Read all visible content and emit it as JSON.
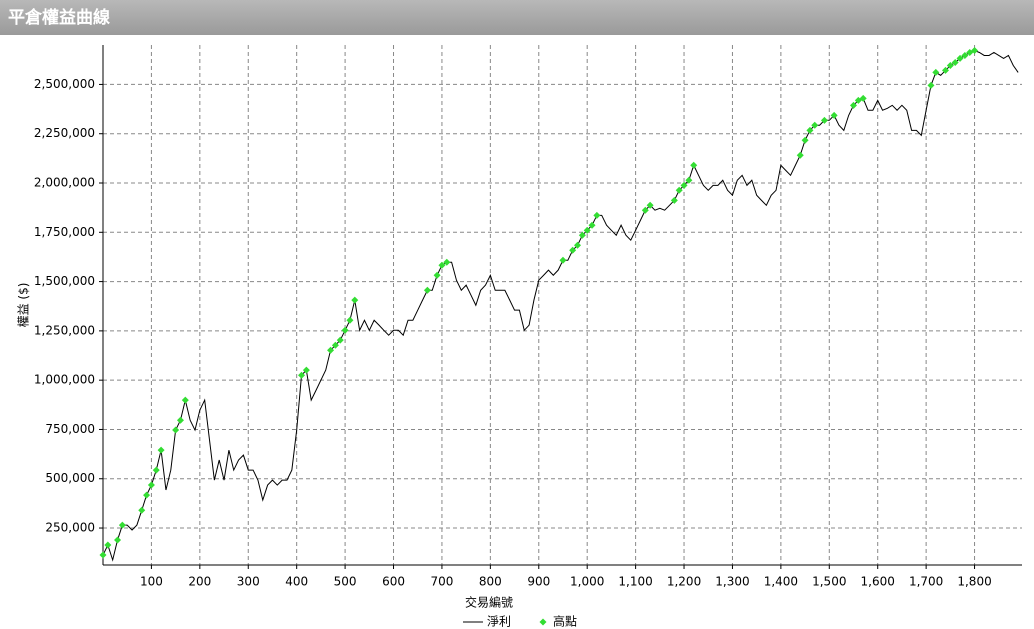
{
  "chart_data": {
    "type": "line",
    "title": "平倉權益曲線",
    "xlabel": "交易編號",
    "ylabel": "權益 ($)",
    "xlim": [
      0,
      1898
    ],
    "ylim": [
      62500,
      2700000
    ],
    "xticks": [
      100,
      200,
      300,
      400,
      500,
      600,
      700,
      800,
      900,
      {
        "value": 1000,
        "label": "1,000"
      },
      {
        "value": 1100,
        "label": "1,100"
      },
      {
        "value": 1200,
        "label": "1,200"
      },
      {
        "value": 1300,
        "label": "1,300"
      },
      {
        "value": 1400,
        "label": "1,400"
      },
      {
        "value": 1500,
        "label": "1,500"
      },
      {
        "value": 1600,
        "label": "1,600"
      },
      {
        "value": 1700,
        "label": "1,700"
      },
      {
        "value": 1800,
        "label": "1,800"
      }
    ],
    "yticks": [
      {
        "value": 250000,
        "label": "250,000"
      },
      {
        "value": 500000,
        "label": "500,000"
      },
      {
        "value": 750000,
        "label": "750,000"
      },
      {
        "value": 1000000,
        "label": "1,000,000"
      },
      {
        "value": 1250000,
        "label": "1,250,000"
      },
      {
        "value": 1500000,
        "label": "1,500,000"
      },
      {
        "value": 1750000,
        "label": "1,750,000"
      },
      {
        "value": 2000000,
        "label": "2,000,000"
      },
      {
        "value": 2250000,
        "label": "2,250,000"
      },
      {
        "value": 2500000,
        "label": "2,500,000"
      }
    ],
    "grid": true,
    "legend": "bottom",
    "series": [
      {
        "name": "淨利",
        "color": "#000000",
        "marker": "none",
        "x": [
          0,
          10,
          20,
          30,
          40,
          50,
          60,
          70,
          80,
          90,
          100,
          110,
          120,
          130,
          140,
          150,
          160,
          170,
          180,
          190,
          200,
          210,
          220,
          230,
          240,
          250,
          260,
          270,
          280,
          290,
          300,
          310,
          320,
          330,
          340,
          350,
          360,
          370,
          380,
          390,
          400,
          410,
          420,
          430,
          440,
          450,
          460,
          470,
          480,
          490,
          500,
          510,
          520,
          530,
          540,
          550,
          560,
          570,
          580,
          590,
          600,
          610,
          620,
          630,
          640,
          650,
          660,
          670,
          680,
          690,
          700,
          710,
          720,
          730,
          740,
          750,
          760,
          770,
          780,
          790,
          800,
          810,
          820,
          830,
          840,
          850,
          860,
          870,
          880,
          890,
          900,
          910,
          920,
          930,
          940,
          950,
          960,
          970,
          980,
          990,
          1000,
          1010,
          1020,
          1030,
          1040,
          1050,
          1060,
          1070,
          1080,
          1090,
          1100,
          1110,
          1120,
          1130,
          1140,
          1150,
          1160,
          1170,
          1180,
          1190,
          1200,
          1210,
          1220,
          1230,
          1240,
          1250,
          1260,
          1270,
          1280,
          1290,
          1300,
          1310,
          1320,
          1330,
          1340,
          1350,
          1360,
          1370,
          1380,
          1390,
          1400,
          1410,
          1420,
          1430,
          1440,
          1450,
          1460,
          1470,
          1480,
          1490,
          1500,
          1510,
          1520,
          1530,
          1540,
          1550,
          1560,
          1570,
          1580,
          1590,
          1600,
          1610,
          1620,
          1630,
          1640,
          1650,
          1660,
          1670,
          1680,
          1690,
          1700,
          1710,
          1720,
          1730,
          1740,
          1750,
          1760,
          1770,
          1780,
          1790,
          1800,
          1810,
          1820,
          1830,
          1840,
          1850,
          1860,
          1870,
          1880,
          1890
        ],
        "values": [
          113000,
          164000,
          88000,
          189000,
          265000,
          265000,
          240000,
          265000,
          340000,
          417000,
          468000,
          544000,
          645000,
          443000,
          544000,
          747000,
          797000,
          899000,
          797000,
          747000,
          848000,
          899000,
          696000,
          493000,
          595000,
          493000,
          645000,
          544000,
          595000,
          620000,
          544000,
          544000,
          493000,
          392000,
          468000,
          493000,
          468000,
          493000,
          493000,
          544000,
          747000,
          1025000,
          1051000,
          899000,
          949000,
          1000000,
          1051000,
          1152000,
          1177000,
          1203000,
          1253000,
          1304000,
          1406000,
          1253000,
          1304000,
          1253000,
          1304000,
          1279000,
          1253000,
          1228000,
          1253000,
          1253000,
          1228000,
          1304000,
          1304000,
          1355000,
          1406000,
          1456000,
          1456000,
          1532000,
          1583000,
          1598000,
          1598000,
          1507000,
          1456000,
          1482000,
          1431000,
          1380000,
          1456000,
          1482000,
          1532000,
          1456000,
          1456000,
          1456000,
          1406000,
          1355000,
          1355000,
          1253000,
          1279000,
          1406000,
          1507000,
          1532000,
          1558000,
          1532000,
          1558000,
          1608000,
          1608000,
          1659000,
          1684000,
          1735000,
          1760000,
          1786000,
          1836000,
          1836000,
          1786000,
          1760000,
          1735000,
          1786000,
          1735000,
          1710000,
          1760000,
          1811000,
          1862000,
          1887000,
          1862000,
          1872000,
          1862000,
          1887000,
          1912000,
          1963000,
          1988000,
          2014000,
          2090000,
          2039000,
          1988000,
          1963000,
          1988000,
          1988000,
          2014000,
          1963000,
          1938000,
          2014000,
          2039000,
          1988000,
          2014000,
          1938000,
          1912000,
          1887000,
          1938000,
          1963000,
          2090000,
          2064000,
          2039000,
          2090000,
          2141000,
          2217000,
          2267000,
          2293000,
          2293000,
          2318000,
          2318000,
          2343000,
          2293000,
          2267000,
          2343000,
          2394000,
          2419000,
          2429000,
          2369000,
          2369000,
          2419000,
          2369000,
          2379000,
          2394000,
          2369000,
          2394000,
          2369000,
          2267000,
          2267000,
          2242000,
          2369000,
          2495000,
          2561000,
          2546000,
          2571000,
          2596000,
          2611000,
          2632000,
          2647000,
          2662000,
          2672000,
          2662000,
          2647000,
          2647000,
          2662000,
          2647000,
          2632000,
          2647000,
          2596000,
          2561000
        ]
      },
      {
        "name": "高點",
        "color": "#33dd33",
        "marker": "diamond",
        "x": [
          0,
          10,
          30,
          40,
          80,
          90,
          100,
          110,
          120,
          150,
          160,
          170,
          410,
          420,
          470,
          480,
          490,
          500,
          510,
          520,
          670,
          690,
          700,
          710,
          950,
          970,
          980,
          990,
          1000,
          1010,
          1020,
          1120,
          1130,
          1180,
          1190,
          1200,
          1210,
          1220,
          1440,
          1450,
          1460,
          1470,
          1490,
          1510,
          1550,
          1560,
          1570,
          1710,
          1720,
          1740,
          1750,
          1760,
          1770,
          1780,
          1790,
          1800
        ],
        "values": [
          113000,
          164000,
          189000,
          265000,
          340000,
          417000,
          468000,
          544000,
          645000,
          747000,
          797000,
          899000,
          1025000,
          1051000,
          1152000,
          1177000,
          1203000,
          1253000,
          1304000,
          1406000,
          1456000,
          1532000,
          1583000,
          1598000,
          1608000,
          1659000,
          1684000,
          1735000,
          1760000,
          1786000,
          1836000,
          1862000,
          1887000,
          1912000,
          1963000,
          1988000,
          2014000,
          2090000,
          2141000,
          2217000,
          2267000,
          2293000,
          2318000,
          2343000,
          2394000,
          2419000,
          2429000,
          2495000,
          2561000,
          2571000,
          2596000,
          2611000,
          2632000,
          2647000,
          2662000,
          2672000
        ]
      }
    ]
  }
}
